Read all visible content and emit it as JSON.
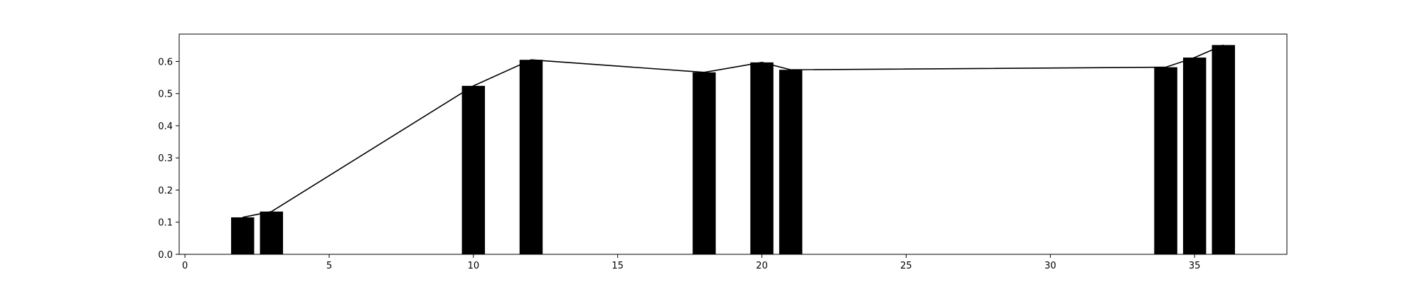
{
  "chart_data": {
    "type": "bar",
    "title": "",
    "xlabel": "",
    "ylabel": "",
    "xlim": [
      -0.2,
      38.2
    ],
    "ylim": [
      0,
      0.685
    ],
    "grid": false,
    "x": [
      2,
      3,
      10,
      12,
      18,
      20,
      21,
      34,
      35,
      36
    ],
    "values": [
      0.115,
      0.133,
      0.524,
      0.605,
      0.566,
      0.597,
      0.574,
      0.582,
      0.612,
      0.651
    ],
    "x_ticks": [
      0,
      5,
      10,
      15,
      20,
      25,
      30,
      35
    ],
    "x_tick_labels": [
      "0",
      "5",
      "10",
      "15",
      "20",
      "25",
      "30",
      "35"
    ],
    "y_ticks": [
      0.0,
      0.1,
      0.2,
      0.3,
      0.4,
      0.5,
      0.6
    ],
    "y_tick_labels": [
      "0.0",
      "0.1",
      "0.2",
      "0.3",
      "0.4",
      "0.5",
      "0.6"
    ],
    "bar_color": "#000000",
    "line_color": "#000000",
    "overlay": "line connecting bar tops"
  }
}
